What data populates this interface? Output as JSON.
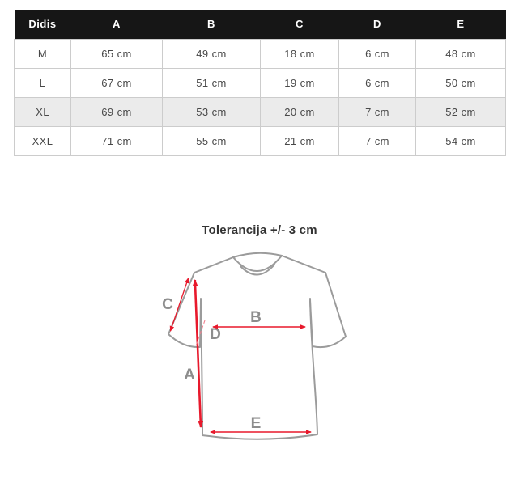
{
  "table": {
    "headers": [
      "Didis",
      "A",
      "B",
      "C",
      "D",
      "E"
    ],
    "rows": [
      {
        "size": "M",
        "values": [
          "65 cm",
          "49 cm",
          "18 cm",
          "6 cm",
          "48 cm"
        ],
        "highlight": false
      },
      {
        "size": "L",
        "values": [
          "67 cm",
          "51 cm",
          "19 cm",
          "6 cm",
          "50 cm"
        ],
        "highlight": false
      },
      {
        "size": "XL",
        "values": [
          "69 cm",
          "53 cm",
          "20 cm",
          "7 cm",
          "52 cm"
        ],
        "highlight": true
      },
      {
        "size": "XXL",
        "values": [
          "71 cm",
          "55 cm",
          "21 cm",
          "7 cm",
          "54 cm"
        ],
        "highlight": false
      }
    ]
  },
  "diagram": {
    "title": "Tolerancija +/- 3 cm",
    "labels": {
      "A": "A",
      "B": "B",
      "C": "C",
      "D": "D",
      "E": "E"
    }
  },
  "colors": {
    "header_bg": "#161616",
    "highlight_row": "#ebebeb",
    "table_border": "#cccccc",
    "arrow_red": "#e8192c",
    "dash_red": "#f2808f",
    "shirt_outline": "#9b9b9b",
    "dim_label_gray": "#8d8d8d"
  }
}
